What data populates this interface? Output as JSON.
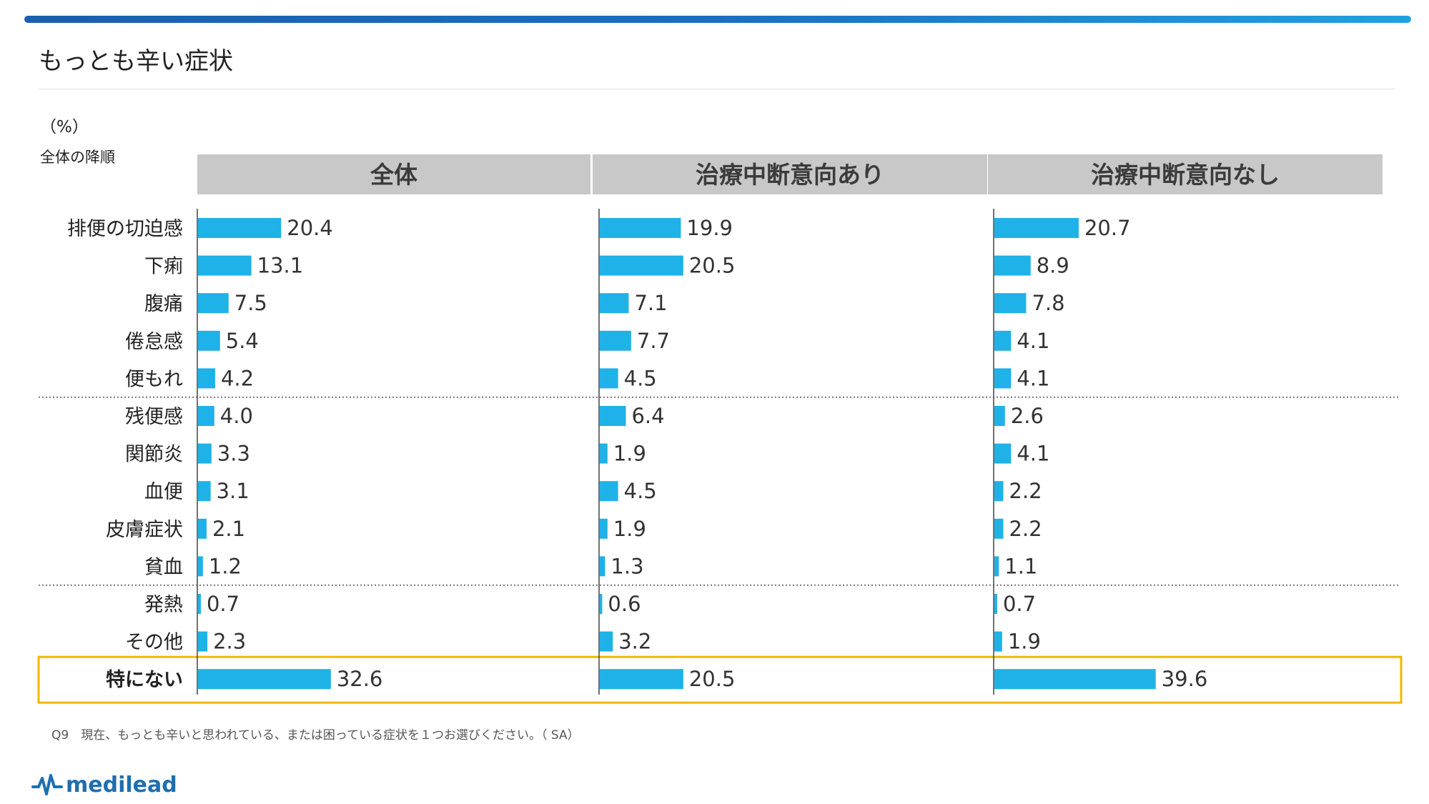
{
  "header": {
    "title": "もっとも辛い症状",
    "unit": "（%）",
    "sort_note": "全体の降順",
    "accent_color": "#1a6fc4"
  },
  "footer": {
    "question": "Q9　現在、もっとも辛いと思われている、または困っている症状を１つお選びください。（ SA）",
    "logo_text": "medilead"
  },
  "colors": {
    "bar": "#1eb2e8",
    "header_bg": "#c8c8c8",
    "highlight_border": "#f2b800"
  },
  "chart_data": {
    "type": "bar",
    "orientation": "horizontal",
    "categories": [
      "排便の切迫感",
      "下痢",
      "腹痛",
      "倦怠感",
      "便もれ",
      "残便感",
      "関節炎",
      "血便",
      "皮膚症状",
      "貧血",
      "発熱",
      "その他",
      "特にない"
    ],
    "highlighted_category": "特にない",
    "group_separators_after": [
      "便もれ",
      "貧血"
    ],
    "series": [
      {
        "name": "全体",
        "values": [
          20.4,
          13.1,
          7.5,
          5.4,
          4.2,
          4.0,
          3.3,
          3.1,
          2.1,
          1.2,
          0.7,
          2.3,
          32.6
        ]
      },
      {
        "name": "治療中断意向あり",
        "values": [
          19.9,
          20.5,
          7.1,
          7.7,
          4.5,
          6.4,
          1.9,
          4.5,
          1.9,
          1.3,
          0.6,
          3.2,
          20.5
        ]
      },
      {
        "name": "治療中断意向なし",
        "values": [
          20.7,
          8.9,
          7.8,
          4.1,
          4.1,
          2.6,
          4.1,
          2.2,
          2.2,
          1.1,
          0.7,
          1.9,
          39.6
        ]
      }
    ],
    "xlim": [
      0,
      45
    ],
    "grid": false,
    "axis_ticks_shown": false
  }
}
